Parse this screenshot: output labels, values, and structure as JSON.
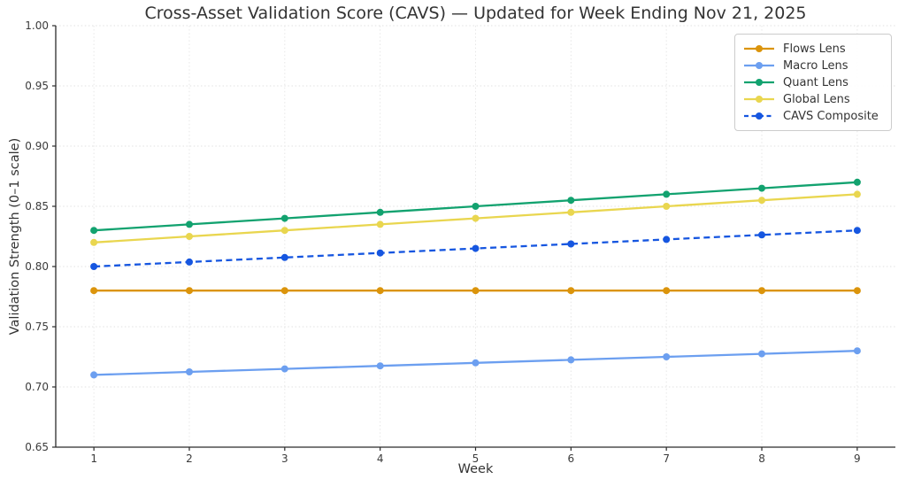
{
  "title": "Cross-Asset Validation Score (CAVS) — Updated for Week Ending Nov 21, 2025",
  "chart_data": {
    "type": "line",
    "x": [
      1,
      2,
      3,
      4,
      5,
      6,
      7,
      8,
      9
    ],
    "xlabel": "Week",
    "ylabel": "Validation Strength (0–1 scale)",
    "xlim": [
      0.6,
      9.4
    ],
    "ylim": [
      0.65,
      1.0
    ],
    "xticks": [
      1,
      2,
      3,
      4,
      5,
      6,
      7,
      8,
      9
    ],
    "yticks": [
      0.65,
      0.7,
      0.75,
      0.8,
      0.85,
      0.9,
      0.95,
      1.0
    ],
    "grid": true,
    "grid_style": "dotted",
    "legend_position": "upper right",
    "series": [
      {
        "name": "Flows Lens",
        "color": "#DB940B",
        "line_style": "solid",
        "marker": "circle",
        "values": [
          0.78,
          0.78,
          0.78,
          0.78,
          0.78,
          0.78,
          0.78,
          0.78,
          0.78
        ]
      },
      {
        "name": "Macro Lens",
        "color": "#6C9FF0",
        "line_style": "solid",
        "marker": "circle",
        "values": [
          0.71,
          0.7125,
          0.715,
          0.7175,
          0.72,
          0.7225,
          0.725,
          0.7275,
          0.73
        ]
      },
      {
        "name": "Quant Lens",
        "color": "#12A26F",
        "line_style": "solid",
        "marker": "circle",
        "values": [
          0.83,
          0.835,
          0.84,
          0.845,
          0.85,
          0.855,
          0.86,
          0.865,
          0.87
        ]
      },
      {
        "name": "Global Lens",
        "color": "#E9D64F",
        "line_style": "solid",
        "marker": "circle",
        "values": [
          0.82,
          0.825,
          0.83,
          0.835,
          0.84,
          0.845,
          0.85,
          0.855,
          0.86
        ]
      },
      {
        "name": "CAVS Composite",
        "color": "#1656E0",
        "line_style": "dashed",
        "marker": "circle",
        "values": [
          0.8,
          0.80375,
          0.8075,
          0.81125,
          0.815,
          0.81875,
          0.8225,
          0.82625,
          0.83
        ]
      }
    ]
  }
}
